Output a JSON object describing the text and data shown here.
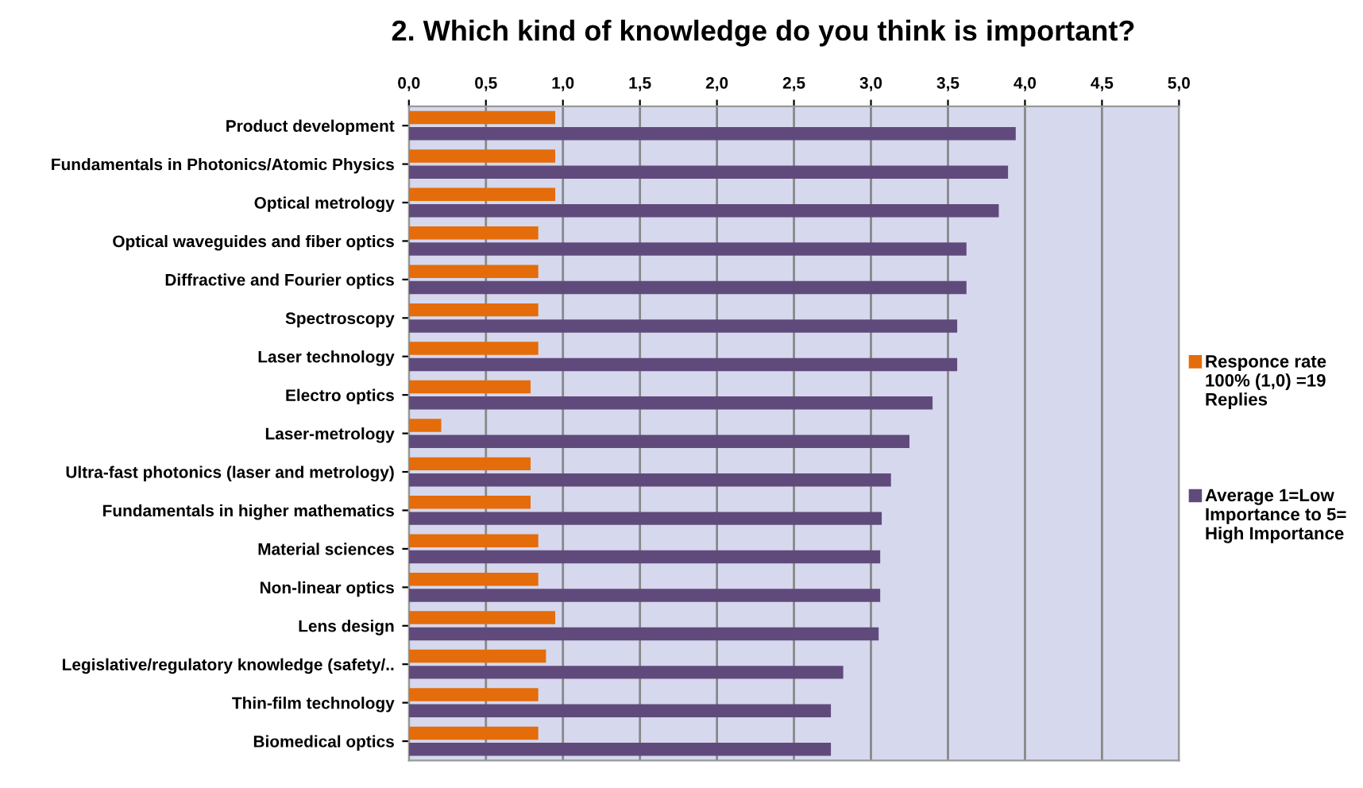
{
  "chart_data": {
    "type": "bar",
    "orientation": "horizontal",
    "title": "2. Which kind of knowledge do you think is important?",
    "categories": [
      "Product development",
      "Fundamentals in Photonics/Atomic Physics",
      "Optical metrology",
      "Optical waveguides and fiber optics",
      "Diffractive and Fourier optics",
      "Spectroscopy",
      "Laser technology",
      "Electro optics",
      "Laser-metrology",
      "Ultra-fast photonics (laser and metrology)",
      "Fundamentals in higher mathematics",
      "Material sciences",
      "Non-linear optics",
      "Lens design",
      "Legislative/regulatory knowledge (safety/..",
      "Thin-film technology",
      "Biomedical optics"
    ],
    "series": [
      {
        "name": "Responce rate 100% (1,0) =19 Replies",
        "color": "#e46c0a",
        "values": [
          0.95,
          0.95,
          0.95,
          0.84,
          0.84,
          0.84,
          0.84,
          0.79,
          0.21,
          0.79,
          0.79,
          0.84,
          0.84,
          0.95,
          0.89,
          0.84,
          0.84
        ]
      },
      {
        "name": "Average 1=Low Importance to 5= High Importance",
        "color": "#604a7b",
        "values": [
          3.94,
          3.89,
          3.83,
          3.62,
          3.62,
          3.56,
          3.56,
          3.4,
          3.25,
          3.13,
          3.07,
          3.06,
          3.06,
          3.05,
          2.82,
          2.74,
          2.74
        ]
      }
    ],
    "xlim": [
      0,
      5
    ],
    "xticks": [
      {
        "value": 0,
        "label": "0,0"
      },
      {
        "value": 0.5,
        "label": "0,5"
      },
      {
        "value": 1,
        "label": "1,0"
      },
      {
        "value": 1.5,
        "label": "1,5"
      },
      {
        "value": 2,
        "label": "2,0"
      },
      {
        "value": 2.5,
        "label": "2,5"
      },
      {
        "value": 3,
        "label": "3,0"
      },
      {
        "value": 3.5,
        "label": "3,5"
      },
      {
        "value": 4,
        "label": "4,0"
      },
      {
        "value": 4.5,
        "label": "4,5"
      },
      {
        "value": 5,
        "label": "5,0"
      }
    ],
    "grid": "x",
    "legend": "right"
  }
}
